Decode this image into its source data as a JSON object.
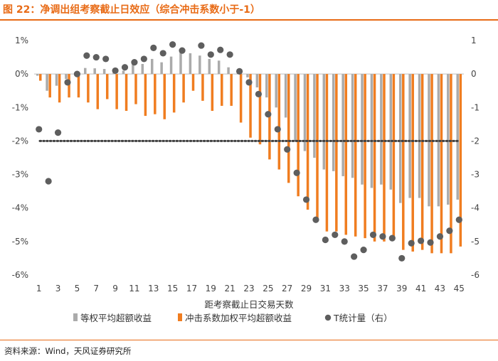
{
  "header": {
    "title": "图 22：净调出组考察截止日效应（综合冲击系数小于-1）"
  },
  "footer": {
    "source": "资料来源：Wind，天风证券研究所"
  },
  "colors": {
    "accent": "#E86B16",
    "bar_equal": "#ABABAB",
    "bar_weighted": "#F07D20",
    "dots": "#5E5E5E"
  },
  "chart_data": {
    "type": "bar",
    "xlabel": "距考察截止日交易天数",
    "categories": [
      1,
      2,
      3,
      4,
      5,
      6,
      7,
      8,
      9,
      10,
      11,
      12,
      13,
      14,
      15,
      16,
      17,
      18,
      19,
      20,
      21,
      22,
      23,
      24,
      25,
      26,
      27,
      28,
      29,
      30,
      31,
      32,
      33,
      34,
      35,
      36,
      37,
      38,
      39,
      40,
      41,
      42,
      43,
      44,
      45
    ],
    "x_tick_labels": [
      "1",
      "3",
      "5",
      "7",
      "9",
      "11",
      "13",
      "15",
      "17",
      "19",
      "21",
      "23",
      "25",
      "27",
      "29",
      "31",
      "33",
      "35",
      "37",
      "39",
      "41",
      "43",
      "45"
    ],
    "left_axis": {
      "range": [
        -6,
        1
      ],
      "ticks": [
        "1%",
        "0%",
        "-1%",
        "-2%",
        "-3%",
        "-4%",
        "-5%",
        "-6%"
      ]
    },
    "right_axis": {
      "range": [
        -6,
        1
      ],
      "ticks": [
        "1",
        "0",
        "-1",
        "-2",
        "-3",
        "-4",
        "-5",
        "-6"
      ]
    },
    "reference_line": {
      "value": -2,
      "style": "dotted"
    },
    "series": [
      {
        "name": "等权平均超额收益",
        "type": "bar",
        "axis": "left",
        "unit": "%",
        "values": [
          -0.05,
          -0.5,
          -0.35,
          -0.15,
          -0.05,
          0.18,
          0.17,
          0.15,
          0.08,
          0.1,
          0.3,
          0.3,
          0.45,
          0.35,
          0.52,
          0.67,
          0.62,
          0.55,
          0.45,
          0.4,
          0.2,
          0.05,
          -0.1,
          -0.4,
          -0.7,
          -1.0,
          -1.3,
          -2.0,
          -2.3,
          -2.5,
          -2.85,
          -2.9,
          -3.05,
          -3.1,
          -3.3,
          -3.4,
          -3.3,
          -3.45,
          -3.85,
          -3.7,
          -3.7,
          -3.95,
          -3.95,
          -3.9,
          -3.75
        ]
      },
      {
        "name": "冲击系数加权平均超额收益",
        "type": "bar",
        "axis": "left",
        "unit": "%",
        "values": [
          -0.2,
          -0.7,
          -0.85,
          -0.7,
          -0.7,
          -0.85,
          -1.05,
          -0.75,
          -1.05,
          -1.1,
          -0.9,
          -1.25,
          -1.2,
          -1.35,
          -1.15,
          -0.85,
          -0.5,
          -0.8,
          -1.1,
          -0.95,
          -0.95,
          -1.45,
          -1.9,
          -2.1,
          -2.55,
          -2.85,
          -3.25,
          -3.65,
          -4.05,
          -4.35,
          -4.7,
          -4.7,
          -4.8,
          -4.85,
          -4.9,
          -5.0,
          -5.0,
          -4.95,
          -5.25,
          -5.3,
          -5.25,
          -5.35,
          -5.35,
          -5.35,
          -5.15
        ]
      },
      {
        "name": "T统计量（右）",
        "type": "scatter",
        "axis": "right",
        "values": [
          -1.65,
          -3.2,
          -1.75,
          -0.25,
          0.0,
          0.55,
          0.5,
          0.45,
          0.1,
          0.2,
          0.35,
          0.45,
          0.78,
          0.62,
          0.88,
          0.7,
          null,
          0.85,
          0.58,
          0.72,
          0.58,
          0.08,
          -0.25,
          -0.6,
          -1.2,
          -1.65,
          -2.25,
          -2.95,
          -3.75,
          -4.35,
          -4.95,
          -4.8,
          -5.0,
          -5.45,
          -5.25,
          -4.8,
          -4.85,
          -4.9,
          -5.5,
          -5.05,
          -4.98,
          -5.03,
          -4.85,
          -4.68,
          -4.35
        ]
      }
    ]
  }
}
